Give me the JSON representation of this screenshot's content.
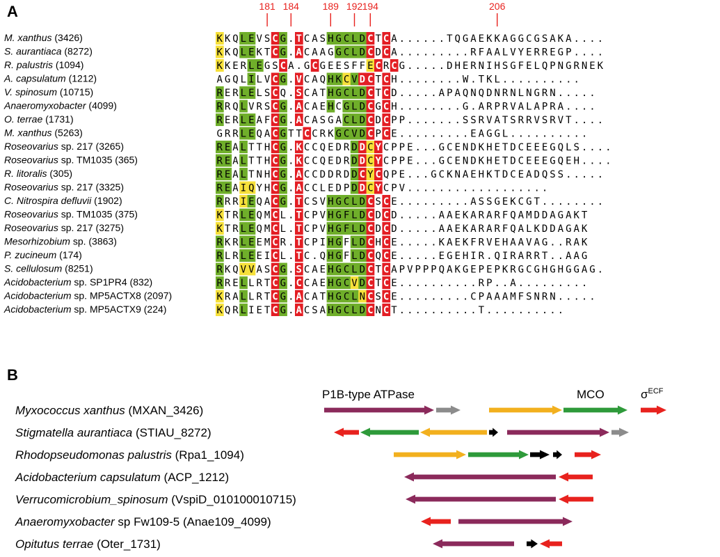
{
  "panel_a": {
    "letter": "A",
    "positions": [
      {
        "label": "181",
        "col": 6
      },
      {
        "label": "184",
        "col": 9
      },
      {
        "label": "189",
        "col": 14
      },
      {
        "label": "192",
        "col": 17
      },
      {
        "label": "194",
        "col": 19
      },
      {
        "label": "206",
        "col": 35
      }
    ],
    "rows": [
      {
        "italic": "M. xanthus",
        "rest": " (3426)",
        "seq": "KKQLEVSCG.TCASHGCLDCTCA......TQGAEKKAGGCGSAKA....",
        "hl": "YW.GG..RG.R...GGGGGR.R"
      },
      {
        "italic": "S. aurantiaca",
        "rest": " (8272)",
        "seq": "KKQLEKTCG.ACAAGGCLDCDCA.........RFAALVYERREGP....",
        "hl": "YW.GG..RG.R....GGGGR.R"
      },
      {
        "italic": "R. palustris",
        "rest": " (1094)",
        "seq": "KKERLEGSCA.GCGEESFFECRCG.....DHERNIHSGFELQPNGRNEK",
        "hl": "YW..GG..R...R......YR.R"
      },
      {
        "italic": "A. capsulatum",
        "rest": " (1212)",
        "seq": "AGQLILVCG.VCAQHKCVDCTCH........W.TKL..........",
        "hl": "....G..RG.R...GGYGRR.R"
      },
      {
        "italic": "V. spinosum",
        "rest": " (10715)",
        "seq": "RERLELSCQ.SCATHGCLDCTCD.....APAQNQDNRNLNGRN.....",
        "hl": "G..GG..R..R...GGGGGR.R"
      },
      {
        "italic": "Anaeromyxobacter",
        "rest": " (4099)",
        "seq": "RRQLVRSCG.ACAEHCGLDCGCH........G.ARPRVALAPRA....",
        "hl": "G..G...RG.R...G.GGGR.R"
      },
      {
        "italic": "O. terrae",
        "rest": " (1731)",
        "seq": "RERLEAFCG.ACASGACLDCDCPP.......SSRVATSRRVSRVT....",
        "hl": "G..GG..RG.R.....GGGR.R"
      },
      {
        "italic": "M. xanthus",
        "rest": " (5263)",
        "seq": "GRRLEQACGTTCCRKGCVDCPCE.........EAGGL..........",
        "hl": "...GG..RG..R...GGGGR.R"
      },
      {
        "italic": "Roseovarius",
        "rest": " sp. 217 (3265)",
        "seq": "REALTTHCG.KCCQEDRDDCYCPPE...GCENDKHETDCEEEGQLS....",
        "hl": "GG.G...RG.R......GRYR"
      },
      {
        "italic": "Roseovarius",
        "rest": " sp. TM1035 (365)",
        "seq": "REALTTHCG.KCCQEDRDDCYCPPE...GCENDKHETDCEEEGQEH....",
        "hl": "GG.G...RG.R......GRYR"
      },
      {
        "italic": "R. litoralis",
        "rest": " (305)",
        "seq": "REALTNHCG.ACCDDRDDCYCQPE...GCKNAEHKTDCEADQSS.....",
        "hl": "GG.G...RG.R......GRYR"
      },
      {
        "italic": "Roseovarius",
        "rest": " sp. 217 (3325)",
        "seq": "REAIQYHCG.ACCLEDPDDCYCPV..................",
        "hl": "GG.YY..RG.R......GRYR"
      },
      {
        "italic": "C. Nitrospira defluvii",
        "rest": " (1902)",
        "seq": "RRRIEQACG.TCSVHGCLDCSCE.........ASSGEKCGT........",
        "hl": "G..YG..RG.R...GGGGGR.R"
      },
      {
        "italic": "Roseovarius",
        "rest": " sp. TM1035 (375)",
        "seq": "KTRLEQMCL.TCPVHGFLDCDCD.....AAEKARARFQAMDDAGAKT",
        "hl": "Y..GG..R..R...GGGGGR.R"
      },
      {
        "italic": "Roseovarius",
        "rest": " sp. 217 (3275)",
        "seq": "KTRLEQMCL.TCPVHGFLDCDCD.....AAEKARARFQALKDDAGAK",
        "hl": "Y..GG..R..R...GGGGGR.R"
      },
      {
        "italic": "Mesorhizobium",
        "rest": " sp. (3863)",
        "seq": "RKRLEEMCR.TCPIHGFLDCHCE.....KAEKFRVEHAAVAG..RAK",
        "hl": "G..GG..R..R...GG.GGR.R"
      },
      {
        "italic": "P. zucineum",
        "rest": " (174)",
        "seq": "RLRLEEICL.TC.QHGFLDCQCE.....EGEHIR.QIRARRT..AAG",
        "hl": "G..GG..R..R...GG.GGR.R"
      },
      {
        "italic": "S. cellulosum",
        "rest": " (8251)",
        "seq": "RKQVVASCG.SCAEHGCLDCTCAPVPPPQAKGEPEPKRGCGHGHGGAG.",
        "hl": "G..YY..RG.R...GGGGGR.R"
      },
      {
        "italic": "Acidobacterium",
        "rest": " sp. SP1PR4 (832)",
        "seq": "RRELLRTCG.CCAEHGCVDCTCE..........RP..A.........",
        "hl": "G..G...RG.R...GGGYGR.R"
      },
      {
        "italic": "Acidobacterium",
        "rest": " sp. MP5ACTX8 (2097)",
        "seq": "KRALLRTCG.ACATHGCLNCSCE.........CPAAAMFSNRN.....",
        "hl": "Y..G...RG.R...GGGGYR.R"
      },
      {
        "italic": "Acidobacterium",
        "rest": " sp. MP5ACTX9 (224)",
        "seq": "KQRLIETCG.ACSAHGCLDCNCT..........T..........",
        "hl": "Y..G...RG.R...GGGGGR.R"
      }
    ]
  },
  "panel_b": {
    "letter": "B",
    "labels": {
      "p1b": "P1B-type ATPase",
      "mco": "MCO",
      "sigma": "σ",
      "sigma_sup": "ECF"
    },
    "colors": {
      "atpase": "#8b2a5b",
      "mco": "#2e9a3a",
      "yellow": "#f2b01e",
      "sigma": "#e8221e",
      "gray": "#8c8c8c",
      "black": "#000000"
    },
    "genes": [
      {
        "italic": "Myxococcus xanthus",
        "rest": " (MXAN_3426)"
      },
      {
        "italic": "Stigmatella aurantiaca",
        "rest": " (STIAU_8272)"
      },
      {
        "italic": "Rhodopseudomonas palustris",
        "rest": " (Rpa1_1094)"
      },
      {
        "italic": "Acidobacterium capsulatum",
        "rest": " (ACP_1212)"
      },
      {
        "italic": "Verrucomicrobium_spinosum",
        "rest": " (VspiD_010100010715)"
      },
      {
        "italic": "Anaeromyxobacter",
        "rest": " sp Fw109-5 (Anae109_4099)"
      },
      {
        "italic": "Opitutus terrae",
        "rest": " (Oter_1731)"
      }
    ]
  }
}
